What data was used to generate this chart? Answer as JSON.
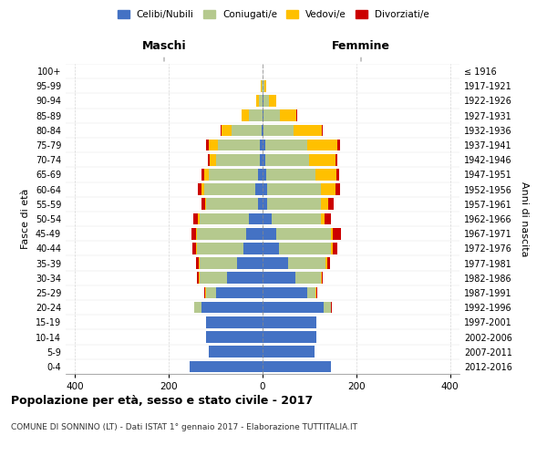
{
  "age_groups": [
    "0-4",
    "5-9",
    "10-14",
    "15-19",
    "20-24",
    "25-29",
    "30-34",
    "35-39",
    "40-44",
    "45-49",
    "50-54",
    "55-59",
    "60-64",
    "65-69",
    "70-74",
    "75-79",
    "80-84",
    "85-89",
    "90-94",
    "95-99",
    "100+"
  ],
  "birth_years": [
    "2012-2016",
    "2007-2011",
    "2002-2006",
    "1997-2001",
    "1992-1996",
    "1987-1991",
    "1982-1986",
    "1977-1981",
    "1972-1976",
    "1967-1971",
    "1962-1966",
    "1957-1961",
    "1952-1956",
    "1947-1951",
    "1942-1946",
    "1937-1941",
    "1932-1936",
    "1927-1931",
    "1922-1926",
    "1917-1921",
    "≤ 1916"
  ],
  "males": {
    "celibi": [
      155,
      115,
      120,
      120,
      130,
      100,
      75,
      55,
      40,
      35,
      30,
      10,
      15,
      10,
      5,
      5,
      2,
      0,
      0,
      0,
      0
    ],
    "coniugati": [
      0,
      0,
      0,
      0,
      15,
      20,
      60,
      80,
      100,
      105,
      105,
      110,
      110,
      105,
      95,
      90,
      65,
      30,
      8,
      2,
      0
    ],
    "vedovi": [
      0,
      0,
      0,
      0,
      0,
      2,
      2,
      2,
      2,
      2,
      3,
      3,
      5,
      10,
      12,
      20,
      20,
      15,
      5,
      2,
      0
    ],
    "divorziati": [
      0,
      0,
      0,
      0,
      0,
      2,
      3,
      5,
      8,
      10,
      10,
      8,
      8,
      5,
      5,
      5,
      2,
      0,
      0,
      0,
      0
    ]
  },
  "females": {
    "nubili": [
      145,
      110,
      115,
      115,
      130,
      95,
      70,
      55,
      35,
      30,
      20,
      10,
      10,
      8,
      5,
      5,
      2,
      2,
      2,
      0,
      0
    ],
    "coniugate": [
      0,
      0,
      0,
      0,
      15,
      18,
      55,
      80,
      110,
      115,
      105,
      115,
      115,
      105,
      95,
      90,
      65,
      35,
      12,
      3,
      0
    ],
    "vedove": [
      0,
      0,
      0,
      0,
      0,
      2,
      2,
      3,
      5,
      5,
      8,
      15,
      30,
      45,
      55,
      65,
      60,
      35,
      15,
      5,
      0
    ],
    "divorziate": [
      0,
      0,
      0,
      0,
      2,
      2,
      2,
      5,
      10,
      18,
      12,
      12,
      10,
      5,
      5,
      5,
      2,
      2,
      0,
      0,
      0
    ]
  },
  "colors": {
    "celibi": "#4472c4",
    "coniugati": "#b5c98e",
    "vedovi": "#ffc000",
    "divorziati": "#cc0000"
  },
  "xlim": 420,
  "title": "Popolazione per età, sesso e stato civile - 2017",
  "subtitle": "COMUNE DI SONNINO (LT) - Dati ISTAT 1° gennaio 2017 - Elaborazione TUTTITALIA.IT",
  "ylabel_left": "Fasce di età",
  "ylabel_right": "Anni di nascita",
  "xlabel_left": "Maschi",
  "xlabel_right": "Femmine",
  "legend_labels": [
    "Celibi/Nubili",
    "Coniugati/e",
    "Vedovi/e",
    "Divorziati/e"
  ],
  "background_color": "#ffffff",
  "grid_color": "#cccccc"
}
